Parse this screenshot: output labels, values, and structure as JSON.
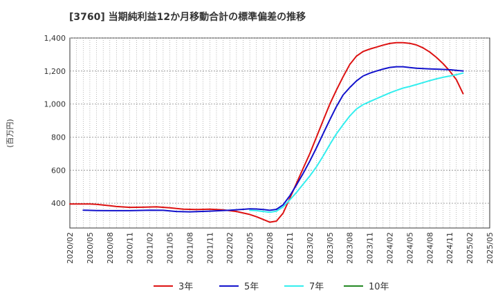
{
  "chart_data": {
    "type": "line",
    "title": "[3760]  当期純利益12か月移動合計の標準偏差の推移",
    "ylabel": "(百万円)",
    "xlabel": "",
    "ylim": [
      250,
      1400
    ],
    "yticks": [
      400,
      600,
      800,
      1000,
      1200,
      1400
    ],
    "ytick_labels": [
      "400",
      "600",
      "800",
      "1,000",
      "1,200",
      "1,400"
    ],
    "xticks": [
      "2020/02",
      "2020/05",
      "2020/08",
      "2020/11",
      "2021/02",
      "2021/05",
      "2021/08",
      "2021/11",
      "2022/02",
      "2022/05",
      "2022/08",
      "2022/11",
      "2023/02",
      "2023/05",
      "2023/08",
      "2023/11",
      "2024/02",
      "2024/05",
      "2024/08",
      "2024/11",
      "2025/02",
      "2025/05"
    ],
    "grid": true,
    "legend_position": "bottom",
    "series": [
      {
        "name": "3年",
        "color": "#dd1111",
        "points": [
          [
            "2020/02",
            395
          ],
          [
            "2020/05",
            395
          ],
          [
            "2020/06",
            393
          ],
          [
            "2020/08",
            385
          ],
          [
            "2020/09",
            380
          ],
          [
            "2020/11",
            375
          ],
          [
            "2021/01",
            376
          ],
          [
            "2021/03",
            378
          ],
          [
            "2021/05",
            372
          ],
          [
            "2021/07",
            364
          ],
          [
            "2021/09",
            362
          ],
          [
            "2021/11",
            364
          ],
          [
            "2022/01",
            360
          ],
          [
            "2022/03",
            350
          ],
          [
            "2022/05",
            332
          ],
          [
            "2022/06",
            318
          ],
          [
            "2022/07",
            302
          ],
          [
            "2022/08",
            285
          ],
          [
            "2022/09",
            292
          ],
          [
            "2022/10",
            340
          ],
          [
            "2022/11",
            430
          ],
          [
            "2022/12",
            520
          ],
          [
            "2023/01",
            610
          ],
          [
            "2023/02",
            700
          ],
          [
            "2023/03",
            800
          ],
          [
            "2023/04",
            900
          ],
          [
            "2023/05",
            1000
          ],
          [
            "2023/06",
            1085
          ],
          [
            "2023/07",
            1165
          ],
          [
            "2023/08",
            1240
          ],
          [
            "2023/09",
            1290
          ],
          [
            "2023/10",
            1318
          ],
          [
            "2023/11",
            1333
          ],
          [
            "2023/12",
            1345
          ],
          [
            "2024/01",
            1357
          ],
          [
            "2024/02",
            1367
          ],
          [
            "2024/03",
            1372
          ],
          [
            "2024/04",
            1372
          ],
          [
            "2024/05",
            1368
          ],
          [
            "2024/06",
            1358
          ],
          [
            "2024/07",
            1340
          ],
          [
            "2024/08",
            1315
          ],
          [
            "2024/09",
            1283
          ],
          [
            "2024/10",
            1245
          ],
          [
            "2024/11",
            1200
          ],
          [
            "2024/12",
            1148
          ],
          [
            "2025/01",
            1063
          ]
        ]
      },
      {
        "name": "5年",
        "color": "#1111cc",
        "points": [
          [
            "2020/04",
            358
          ],
          [
            "2020/06",
            356
          ],
          [
            "2020/08",
            355
          ],
          [
            "2020/11",
            355
          ],
          [
            "2021/02",
            358
          ],
          [
            "2021/04",
            357
          ],
          [
            "2021/06",
            350
          ],
          [
            "2021/08",
            348
          ],
          [
            "2021/11",
            352
          ],
          [
            "2022/02",
            358
          ],
          [
            "2022/04",
            363
          ],
          [
            "2022/05",
            366
          ],
          [
            "2022/06",
            365
          ],
          [
            "2022/07",
            362
          ],
          [
            "2022/08",
            357
          ],
          [
            "2022/09",
            363
          ],
          [
            "2022/10",
            390
          ],
          [
            "2022/11",
            445
          ],
          [
            "2022/12",
            510
          ],
          [
            "2023/01",
            580
          ],
          [
            "2023/02",
            655
          ],
          [
            "2023/03",
            735
          ],
          [
            "2023/04",
            820
          ],
          [
            "2023/05",
            905
          ],
          [
            "2023/06",
            985
          ],
          [
            "2023/07",
            1055
          ],
          [
            "2023/08",
            1100
          ],
          [
            "2023/09",
            1140
          ],
          [
            "2023/10",
            1170
          ],
          [
            "2023/11",
            1187
          ],
          [
            "2023/12",
            1200
          ],
          [
            "2024/01",
            1212
          ],
          [
            "2024/02",
            1222
          ],
          [
            "2024/03",
            1226
          ],
          [
            "2024/04",
            1226
          ],
          [
            "2024/05",
            1221
          ],
          [
            "2024/06",
            1217
          ],
          [
            "2024/08",
            1213
          ],
          [
            "2024/11",
            1208
          ],
          [
            "2025/01",
            1200
          ]
        ]
      },
      {
        "name": "7年",
        "color": "#33eeee",
        "points": [
          [
            "2022/05",
            357
          ],
          [
            "2022/06",
            355
          ],
          [
            "2022/07",
            350
          ],
          [
            "2022/08",
            345
          ],
          [
            "2022/09",
            352
          ],
          [
            "2022/10",
            378
          ],
          [
            "2022/11",
            420
          ],
          [
            "2022/12",
            465
          ],
          [
            "2023/01",
            515
          ],
          [
            "2023/02",
            565
          ],
          [
            "2023/03",
            620
          ],
          [
            "2023/04",
            685
          ],
          [
            "2023/05",
            755
          ],
          [
            "2023/06",
            820
          ],
          [
            "2023/07",
            875
          ],
          [
            "2023/08",
            928
          ],
          [
            "2023/09",
            970
          ],
          [
            "2023/10",
            997
          ],
          [
            "2023/11",
            1015
          ],
          [
            "2023/12",
            1033
          ],
          [
            "2024/01",
            1050
          ],
          [
            "2024/02",
            1068
          ],
          [
            "2024/03",
            1083
          ],
          [
            "2024/04",
            1097
          ],
          [
            "2024/05",
            1107
          ],
          [
            "2024/06",
            1118
          ],
          [
            "2024/07",
            1130
          ],
          [
            "2024/08",
            1142
          ],
          [
            "2024/09",
            1153
          ],
          [
            "2024/10",
            1162
          ],
          [
            "2024/11",
            1170
          ],
          [
            "2024/12",
            1178
          ],
          [
            "2025/01",
            1188
          ]
        ]
      },
      {
        "name": "10年",
        "color": "#228822",
        "points": []
      }
    ]
  }
}
